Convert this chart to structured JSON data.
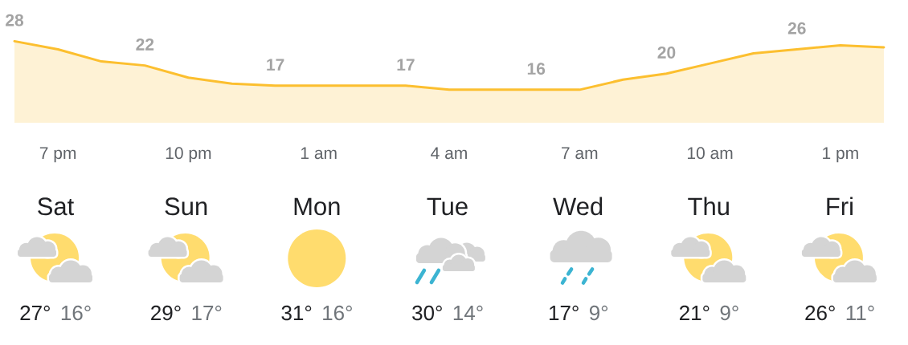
{
  "chart_data": [
    {
      "type": "area",
      "categories": [
        null,
        "7 pm",
        null,
        null,
        "10 pm",
        null,
        null,
        "1 am",
        null,
        null,
        "4 am",
        null,
        null,
        "7 am",
        null,
        null,
        "10 am",
        null,
        null,
        "1 pm",
        null
      ],
      "series": [
        {
          "color": "#fcbf2f",
          "values": [
            28,
            26,
            23,
            22,
            19,
            17.5,
            17,
            17,
            17,
            17,
            16,
            16,
            16,
            16,
            18.5,
            20,
            22.5,
            25,
            26,
            27,
            26.5
          ],
          "value_labels": [
            "28",
            null,
            null,
            "22",
            null,
            null,
            "17",
            null,
            null,
            "17",
            null,
            null,
            "16",
            null,
            null,
            "20",
            null,
            null,
            "26",
            null,
            null
          ]
        }
      ]
    },
    {
      "type": "other",
      "categories": [
        "Sat",
        "Sun",
        "Mon",
        "Tue",
        "Wed",
        "Thu",
        "Fri"
      ],
      "series": [
        {
          "color": "#202124",
          "values": [
            27,
            29,
            31,
            30,
            17,
            21,
            26
          ],
          "value_labels": [
            "27°",
            "29°",
            "31°",
            "30°",
            "17°",
            "21°",
            "26°"
          ]
        },
        {
          "color": "#70757a",
          "values": [
            16,
            17,
            16,
            14,
            9,
            9,
            11
          ],
          "value_labels": [
            "16°",
            "17°",
            "16°",
            "14°",
            "9°",
            "9°",
            "11°"
          ]
        }
      ]
    }
  ]
}
